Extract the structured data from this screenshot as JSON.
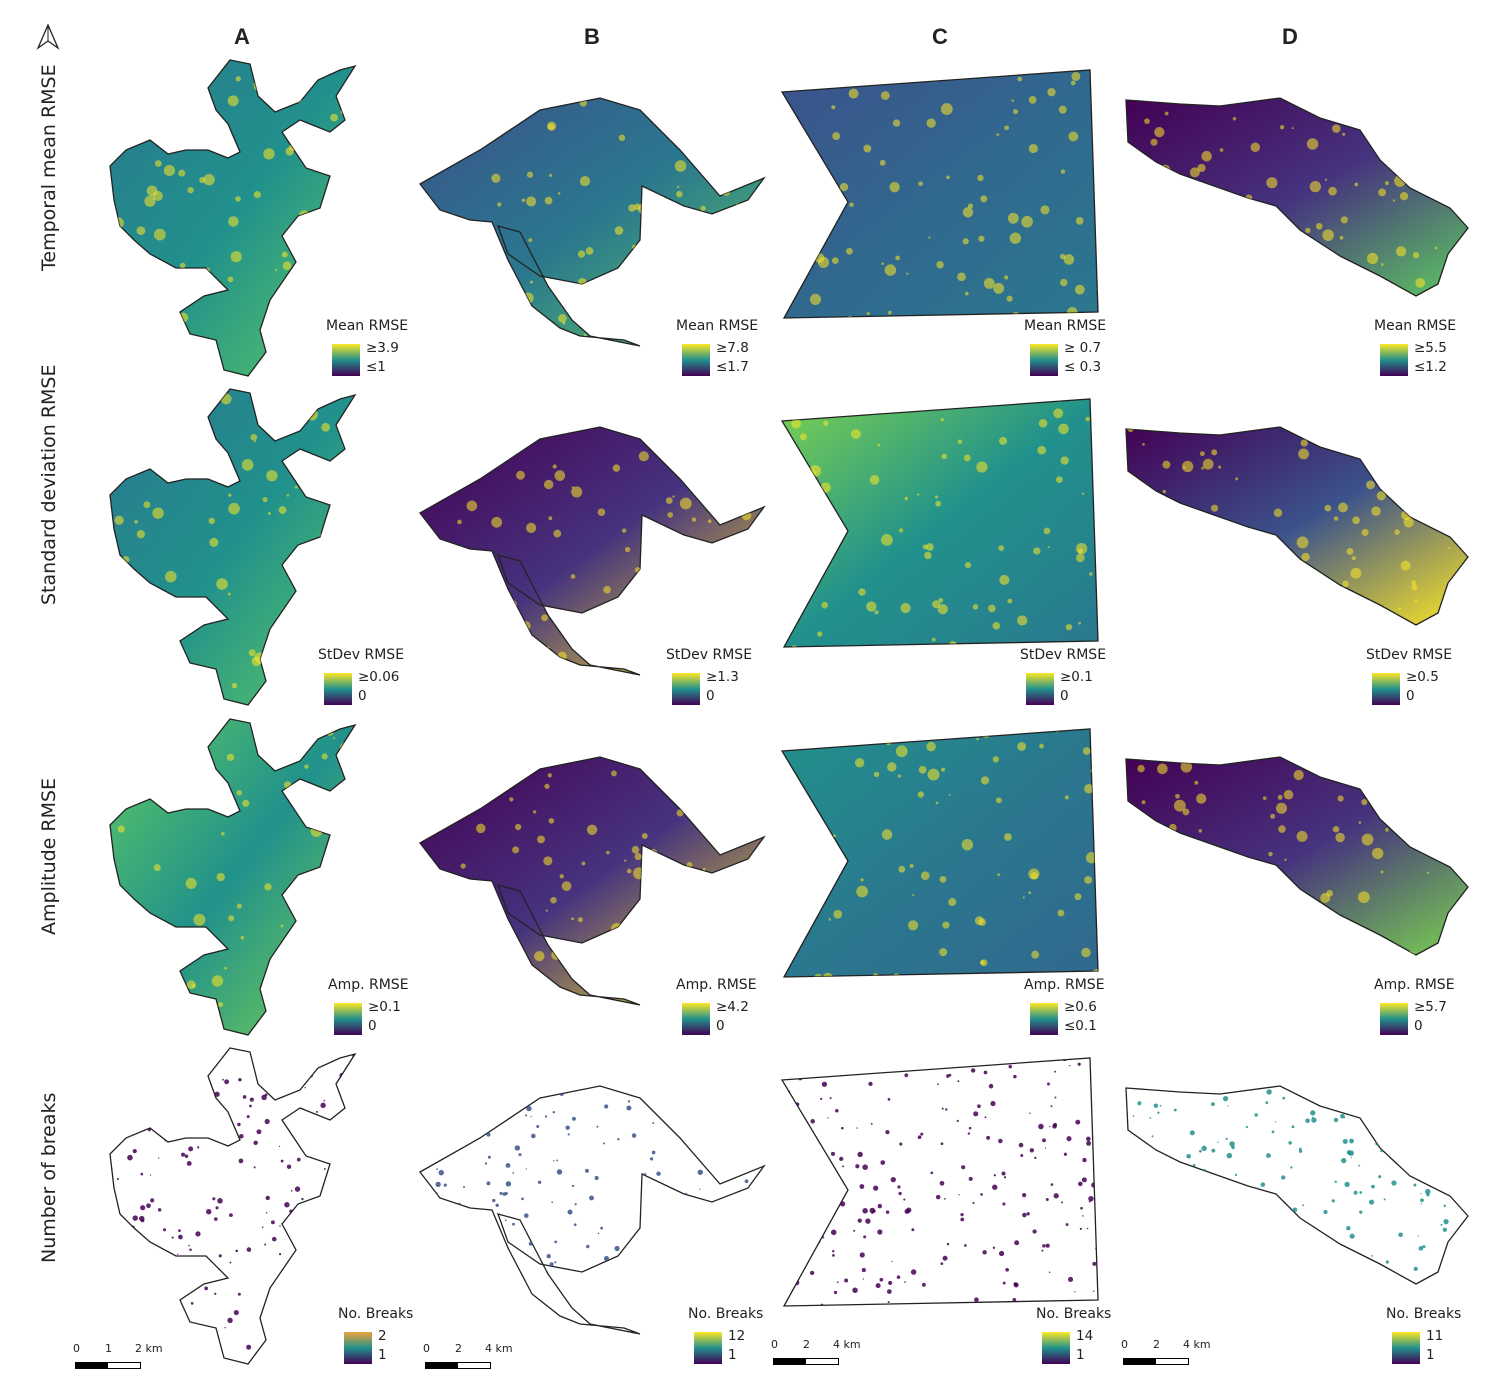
{
  "columns": [
    "A",
    "B",
    "C",
    "D"
  ],
  "rows": [
    "Temporal mean RMSE",
    "Standard deviation RMSE",
    "Amplitude RMSE",
    "Number of breaks"
  ],
  "north_arrow": "north-arrow-icon",
  "colormap": {
    "viridis_low": "#440154",
    "viridis_mid": "#21918c",
    "viridis_high": "#fde725"
  },
  "legends": {
    "r0": [
      {
        "title": "Mean RMSE",
        "max": "≥3.9",
        "min": "≤1"
      },
      {
        "title": "Mean RMSE",
        "max": "≥7.8",
        "min": "≤1.7"
      },
      {
        "title": "Mean RMSE",
        "max": "≥ 0.7",
        "min": "≤ 0.3"
      },
      {
        "title": "Mean RMSE",
        "max": "≥5.5",
        "min": "≤1.2"
      }
    ],
    "r1": [
      {
        "title": "StDev RMSE",
        "max": "≥0.06",
        "min": "0"
      },
      {
        "title": "StDev RMSE",
        "max": "≥1.3",
        "min": "0"
      },
      {
        "title": "StDev RMSE",
        "max": "≥0.1",
        "min": "0"
      },
      {
        "title": "StDev RMSE",
        "max": "≥0.5",
        "min": "0"
      }
    ],
    "r2": [
      {
        "title": "Amp. RMSE",
        "max": "≥0.1",
        "min": "0"
      },
      {
        "title": "Amp. RMSE",
        "max": "≥4.2",
        "min": "0"
      },
      {
        "title": "Amp. RMSE",
        "max": "≥0.6",
        "min": "≤0.1"
      },
      {
        "title": "Amp. RMSE",
        "max": "≥5.7",
        "min": "0"
      }
    ],
    "r3": [
      {
        "title": "No. Breaks",
        "max": "2",
        "min": "1"
      },
      {
        "title": "No. Breaks",
        "max": "12",
        "min": "1"
      },
      {
        "title": "No. Breaks",
        "max": "14",
        "min": "1"
      },
      {
        "title": "No. Breaks",
        "max": "11",
        "min": "1"
      }
    ]
  },
  "scalebars": [
    {
      "t0": "0",
      "t1": "1",
      "t2": "2 km"
    },
    {
      "t0": "0",
      "t1": "2",
      "t2": "4 km"
    },
    {
      "t0": "0",
      "t1": "2",
      "t2": "4 km"
    },
    {
      "t0": "0",
      "t1": "2",
      "t2": "4 km"
    }
  ]
}
